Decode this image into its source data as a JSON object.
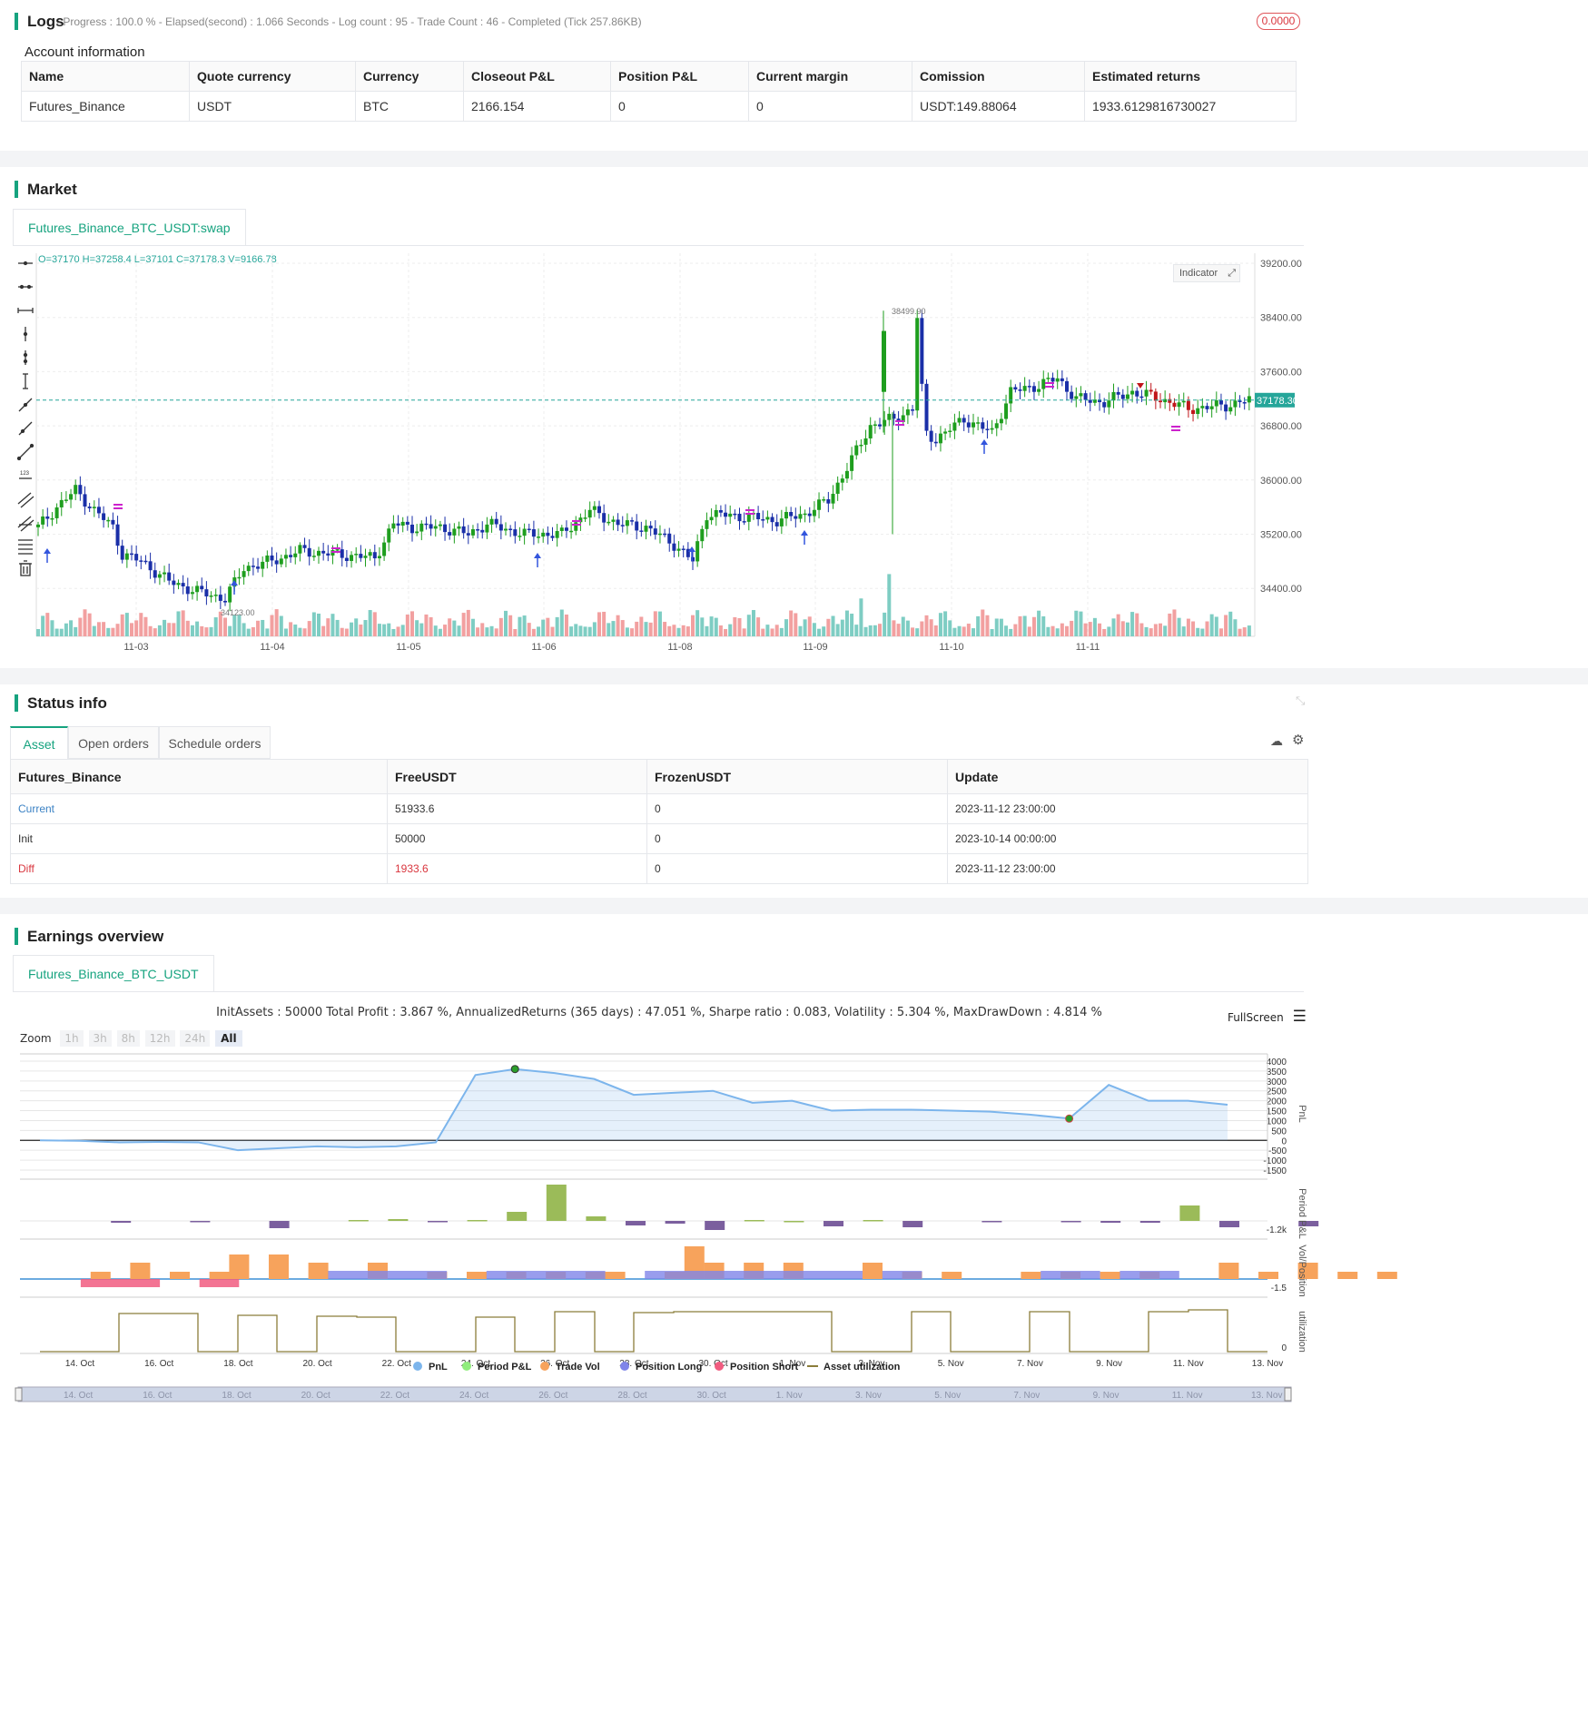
{
  "logs": {
    "title": "Logs",
    "meta": "- Progress : 100.0 % - Elapsed(second) : 1.066  Seconds - Log count : 95 - Trade Count : 46 - Completed (Tick 257.86KB)",
    "badge": "0.0000"
  },
  "account": {
    "title": "Account information",
    "headers": [
      "Name",
      "Quote currency",
      "Currency",
      "Closeout P&L",
      "Position P&L",
      "Current margin",
      "Comission",
      "Estimated returns"
    ],
    "row": [
      "Futures_Binance",
      "USDT",
      "BTC",
      "2166.154",
      "0",
      "0",
      "USDT:149.88064",
      "1933.6129816730027"
    ]
  },
  "market": {
    "title": "Market",
    "tab": "Futures_Binance_BTC_USDT:swap",
    "ohlc": "O=37170 H=37258.4 L=37101 C=37178.3 V=9166.78",
    "indicator_btn": "Indicator",
    "price_ticks": [
      "39200.00",
      "38400.00",
      "37600.00",
      "36800.00",
      "36000.00",
      "35200.00",
      "34400.00"
    ],
    "date_ticks": [
      "11-03",
      "11-04",
      "11-05",
      "11-06",
      "11-08",
      "11-09",
      "11-10",
      "11-11"
    ],
    "last_price": "37178.30",
    "high_label": "38499.90",
    "low_label": "34123.00",
    "colors": {
      "up": "#1e9e1e",
      "down": "#1a2fa8",
      "short_down": "#c0161b",
      "signal": "#cc22cc",
      "long": "#3355dd",
      "vol_up": "#7ecdc3",
      "vol_down": "#f2a0a0"
    }
  },
  "status": {
    "title": "Status info",
    "tabs": [
      "Asset",
      "Open orders",
      "Schedule orders"
    ],
    "headers": [
      "Futures_Binance",
      "FreeUSDT",
      "FrozenUSDT",
      "Update"
    ],
    "rows": [
      [
        "Current",
        "51933.6",
        "0",
        "2023-11-12 23:00:00"
      ],
      [
        "Init",
        "50000",
        "0",
        "2023-10-14 00:00:00"
      ],
      [
        "Diff",
        "1933.6",
        "0",
        "2023-11-12 23:00:00"
      ]
    ]
  },
  "earnings": {
    "title": "Earnings overview",
    "tab": "Futures_Binance_BTC_USDT",
    "summary": "InitAssets : 50000 Total Profit : 3.867 %, AnnualizedReturns (365 days) : 47.051 %, Sharpe ratio : 0.083, Volatility : 5.304 %, MaxDrawDown : 4.814 %",
    "fullscreen": "FullScreen",
    "zoom_label": "Zoom",
    "zoom_buttons": [
      "1h",
      "3h",
      "8h",
      "12h",
      "24h",
      "All"
    ],
    "pnl_ticks": [
      "4000",
      "3500",
      "3000",
      "2500",
      "2000",
      "1500",
      "1000",
      "500",
      "0",
      "-500",
      "-1000",
      "-1500"
    ],
    "period_tick": "-1.2k",
    "vol_tick": "-1.5",
    "util_tick": "0",
    "axis_labels": [
      "PnL",
      "Period P&L",
      "Vol/Position",
      "utilization"
    ],
    "date_ticks": [
      "14. Oct",
      "16. Oct",
      "18. Oct",
      "20. Oct",
      "22. Oct",
      "24. Oct",
      "26. Oct",
      "28. Oct",
      "30. Oct",
      "1. Nov",
      "3. Nov",
      "5. Nov",
      "7. Nov",
      "9. Nov",
      "11. Nov",
      "13. Nov"
    ],
    "legend": [
      "PnL",
      "Period P&L",
      "Trade Vol",
      "Position Long",
      "Position Short",
      "Asset utilization"
    ],
    "legend_colors": [
      "#7cb5ec",
      "#90ed7d",
      "#f7a35c",
      "#8085e9",
      "#f15c80",
      "#8b7d3a"
    ]
  }
}
